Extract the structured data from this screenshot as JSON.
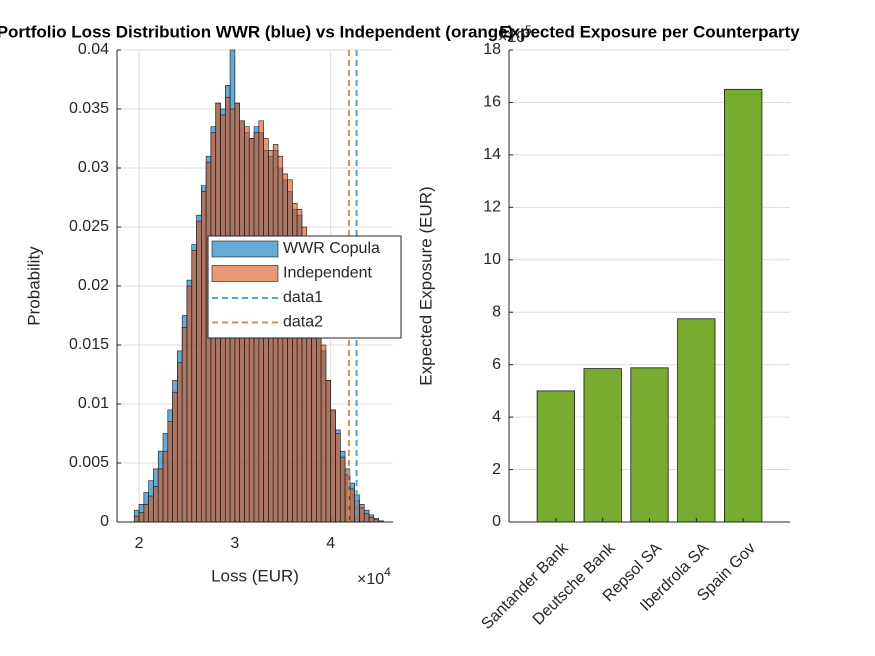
{
  "chart_data": [
    {
      "type": "histogram",
      "title": "Portfolio Loss Distribution WWR (blue) vs Independent (orange)",
      "x_label": "Loss (EUR)",
      "y_label": "Probability",
      "x_multiplier": {
        "base": "×10",
        "power": "4"
      },
      "xlim": [
        1.77,
        4.65
      ],
      "xticks": [
        2,
        3,
        4
      ],
      "ylim": [
        0,
        0.04
      ],
      "yticks": [
        0,
        0.005,
        0.01,
        0.015,
        0.02,
        0.025,
        0.03,
        0.035,
        0.04
      ],
      "grid": true,
      "legend": "east",
      "face_alpha": 0.6,
      "bins": [
        1.95,
        2,
        2.05,
        2.1,
        2.15,
        2.2,
        2.25,
        2.3,
        2.35,
        2.4,
        2.45,
        2.5,
        2.55,
        2.6,
        2.65,
        2.7,
        2.75,
        2.8,
        2.85,
        2.9,
        2.95,
        3,
        3.05,
        3.1,
        3.15,
        3.2,
        3.25,
        3.3,
        3.35,
        3.4,
        3.45,
        3.5,
        3.55,
        3.6,
        3.65,
        3.7,
        3.75,
        3.8,
        3.85,
        3.9,
        3.95,
        4,
        4.05,
        4.1,
        4.15,
        4.2,
        4.25,
        4.3,
        4.35,
        4.4,
        4.45,
        4.5,
        4.55
      ],
      "series": [
        {
          "name": "WWR Copula",
          "color": "#0072bd",
          "values": [
            0.001,
            0.0015,
            0.0025,
            0.0035,
            0.0045,
            0.006,
            0.0075,
            0.0095,
            0.012,
            0.0145,
            0.0175,
            0.0205,
            0.0235,
            0.026,
            0.0285,
            0.031,
            0.0335,
            0.0355,
            0.035,
            0.037,
            0.04,
            0.0355,
            0.034,
            0.033,
            0.0325,
            0.0335,
            0.033,
            0.0315,
            0.031,
            0.0315,
            0.03,
            0.029,
            0.028,
            0.0265,
            0.026,
            0.024,
            0.0215,
            0.019,
            0.017,
            0.0145,
            0.012,
            0.0095,
            0.0078,
            0.006,
            0.0045,
            0.0033,
            0.0023,
            0.0015,
            0.001,
            0.0006,
            0.0003,
            0.0001
          ]
        },
        {
          "name": "Independent",
          "color": "#d95319",
          "values": [
            0.0005,
            0.0008,
            0.0015,
            0.0022,
            0.003,
            0.0045,
            0.006,
            0.0085,
            0.011,
            0.0135,
            0.0165,
            0.02,
            0.023,
            0.0255,
            0.028,
            0.0305,
            0.033,
            0.0355,
            0.0345,
            0.036,
            0.035,
            0.0355,
            0.034,
            0.0335,
            0.0325,
            0.033,
            0.034,
            0.0325,
            0.0315,
            0.032,
            0.031,
            0.0295,
            0.029,
            0.027,
            0.0265,
            0.025,
            0.022,
            0.02,
            0.0175,
            0.015,
            0.012,
            0.0095,
            0.0075,
            0.0055,
            0.004,
            0.0028,
            0.0018,
            0.0012,
            0.0007,
            0.0004,
            0.0002,
            0.0001
          ]
        }
      ],
      "vlines": [
        {
          "name": "data1",
          "color": "#4da3d6",
          "x": 4.27
        },
        {
          "name": "data2",
          "color": "#e08a5a",
          "x": 4.19
        }
      ]
    },
    {
      "type": "bar",
      "title": "Expected Exposure per Counterparty",
      "y_label": "Expected Exposure (EUR)",
      "y_multiplier": {
        "base": "×10",
        "power": "5"
      },
      "categories": [
        "Santander Bank",
        "Deutsche Bank",
        "Repsol SA",
        "Iberdrola SA",
        "Spain Gov"
      ],
      "values": [
        5.0,
        5.85,
        5.88,
        7.75,
        16.5
      ],
      "color": "#77ac30",
      "ylim": [
        0,
        18
      ],
      "yticks": [
        0,
        2,
        4,
        6,
        8,
        10,
        12,
        14,
        16,
        18
      ],
      "grid": true
    }
  ]
}
